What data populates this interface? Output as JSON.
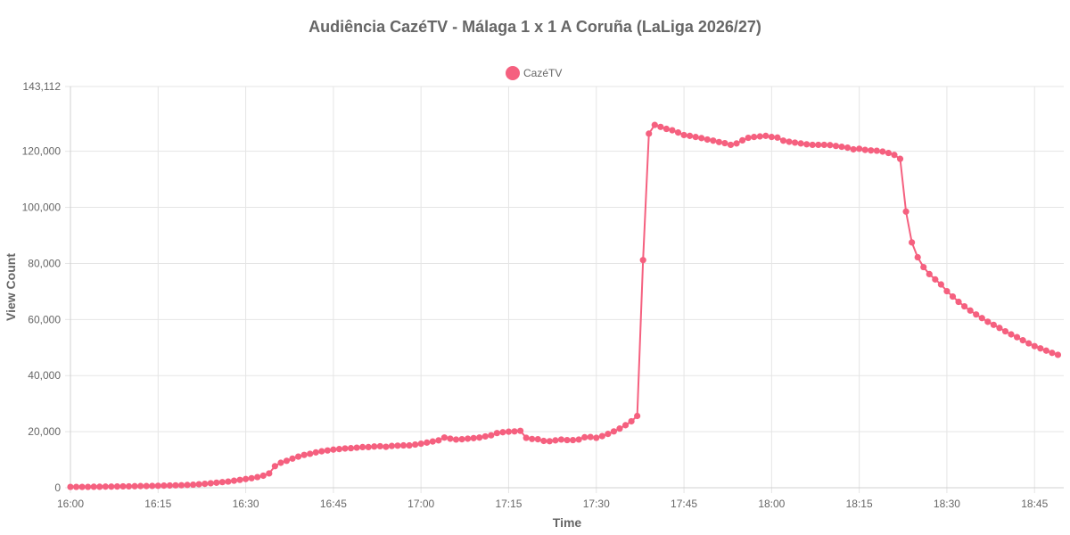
{
  "chart_data": {
    "type": "line",
    "title": "Audiência CazéTV - Málaga 1 x 1 A Coruña (LaLiga 2026/27)",
    "xlabel": "Time",
    "ylabel": "View Count",
    "x_start": "16:00",
    "x_end": "18:50",
    "xlim_minutes": [
      0,
      170
    ],
    "ylim": [
      0,
      143112
    ],
    "x_ticks": [
      "16:00",
      "16:15",
      "16:30",
      "16:45",
      "17:00",
      "17:15",
      "17:30",
      "17:45",
      "18:00",
      "18:15",
      "18:30",
      "18:45"
    ],
    "y_ticks": [
      "0",
      "20,000",
      "40,000",
      "60,000",
      "80,000",
      "100,000",
      "120,000",
      "143,112"
    ],
    "y_tick_values": [
      0,
      20000,
      40000,
      60000,
      80000,
      100000,
      120000,
      143112
    ],
    "grid": true,
    "legend_position": "top",
    "series": [
      {
        "name": "CazéTV",
        "color": "#f5607f",
        "points": [
          [
            "16:00",
            300
          ],
          [
            "16:01",
            300
          ],
          [
            "16:02",
            300
          ],
          [
            "16:03",
            300
          ],
          [
            "16:04",
            350
          ],
          [
            "16:05",
            350
          ],
          [
            "16:06",
            400
          ],
          [
            "16:07",
            400
          ],
          [
            "16:08",
            450
          ],
          [
            "16:09",
            500
          ],
          [
            "16:10",
            500
          ],
          [
            "16:11",
            550
          ],
          [
            "16:12",
            600
          ],
          [
            "16:13",
            600
          ],
          [
            "16:14",
            650
          ],
          [
            "16:15",
            700
          ],
          [
            "16:16",
            750
          ],
          [
            "16:17",
            800
          ],
          [
            "16:18",
            850
          ],
          [
            "16:19",
            900
          ],
          [
            "16:20",
            1000
          ],
          [
            "16:21",
            1100
          ],
          [
            "16:22",
            1250
          ],
          [
            "16:23",
            1400
          ],
          [
            "16:24",
            1600
          ],
          [
            "16:25",
            1800
          ],
          [
            "16:26",
            2000
          ],
          [
            "16:27",
            2200
          ],
          [
            "16:28",
            2500
          ],
          [
            "16:29",
            2800
          ],
          [
            "16:30",
            3100
          ],
          [
            "16:31",
            3400
          ],
          [
            "16:32",
            3800
          ],
          [
            "16:33",
            4300
          ],
          [
            "16:34",
            5100
          ],
          [
            "16:35",
            7700
          ],
          [
            "16:36",
            8900
          ],
          [
            "16:37",
            9600
          ],
          [
            "16:38",
            10400
          ],
          [
            "16:39",
            11100
          ],
          [
            "16:40",
            11700
          ],
          [
            "16:41",
            12100
          ],
          [
            "16:42",
            12600
          ],
          [
            "16:43",
            13000
          ],
          [
            "16:44",
            13300
          ],
          [
            "16:45",
            13600
          ],
          [
            "16:46",
            13800
          ],
          [
            "16:47",
            14000
          ],
          [
            "16:48",
            14100
          ],
          [
            "16:49",
            14300
          ],
          [
            "16:50",
            14500
          ],
          [
            "16:51",
            14500
          ],
          [
            "16:52",
            14700
          ],
          [
            "16:53",
            14800
          ],
          [
            "16:54",
            14600
          ],
          [
            "16:55",
            14900
          ],
          [
            "16:56",
            15000
          ],
          [
            "16:57",
            15100
          ],
          [
            "16:58",
            15100
          ],
          [
            "16:59",
            15400
          ],
          [
            "17:00",
            15700
          ],
          [
            "17:01",
            16100
          ],
          [
            "17:02",
            16500
          ],
          [
            "17:03",
            16900
          ],
          [
            "17:04",
            17900
          ],
          [
            "17:05",
            17500
          ],
          [
            "17:06",
            17200
          ],
          [
            "17:07",
            17300
          ],
          [
            "17:08",
            17500
          ],
          [
            "17:09",
            17700
          ],
          [
            "17:10",
            17900
          ],
          [
            "17:11",
            18300
          ],
          [
            "17:12",
            18700
          ],
          [
            "17:13",
            19500
          ],
          [
            "17:14",
            19800
          ],
          [
            "17:15",
            20000
          ],
          [
            "17:16",
            20100
          ],
          [
            "17:17",
            20300
          ],
          [
            "17:18",
            17800
          ],
          [
            "17:19",
            17400
          ],
          [
            "17:20",
            17300
          ],
          [
            "17:21",
            16700
          ],
          [
            "17:22",
            16600
          ],
          [
            "17:23",
            16900
          ],
          [
            "17:24",
            17200
          ],
          [
            "17:25",
            17000
          ],
          [
            "17:26",
            17000
          ],
          [
            "17:27",
            17200
          ],
          [
            "17:28",
            18000
          ],
          [
            "17:29",
            18100
          ],
          [
            "17:30",
            17800
          ],
          [
            "17:31",
            18400
          ],
          [
            "17:32",
            19200
          ],
          [
            "17:33",
            20100
          ],
          [
            "17:34",
            21100
          ],
          [
            "17:35",
            22300
          ],
          [
            "17:36",
            23700
          ],
          [
            "17:37",
            25600
          ],
          [
            "17:38",
            81200
          ],
          [
            "17:39",
            126300
          ],
          [
            "17:40",
            129400
          ],
          [
            "17:41",
            128700
          ],
          [
            "17:42",
            128000
          ],
          [
            "17:43",
            127500
          ],
          [
            "17:44",
            126700
          ],
          [
            "17:45",
            125800
          ],
          [
            "17:46",
            125500
          ],
          [
            "17:47",
            125100
          ],
          [
            "17:48",
            124700
          ],
          [
            "17:49",
            124200
          ],
          [
            "17:50",
            123800
          ],
          [
            "17:51",
            123300
          ],
          [
            "17:52",
            122900
          ],
          [
            "17:53",
            122300
          ],
          [
            "17:54",
            122800
          ],
          [
            "17:55",
            123900
          ],
          [
            "17:56",
            124800
          ],
          [
            "17:57",
            125100
          ],
          [
            "17:58",
            125300
          ],
          [
            "17:59",
            125500
          ],
          [
            "18:00",
            125100
          ],
          [
            "18:01",
            124900
          ],
          [
            "18:02",
            123800
          ],
          [
            "18:03",
            123400
          ],
          [
            "18:04",
            123100
          ],
          [
            "18:05",
            122800
          ],
          [
            "18:06",
            122500
          ],
          [
            "18:07",
            122300
          ],
          [
            "18:08",
            122300
          ],
          [
            "18:09",
            122300
          ],
          [
            "18:10",
            122200
          ],
          [
            "18:11",
            121900
          ],
          [
            "18:12",
            121600
          ],
          [
            "18:13",
            121300
          ],
          [
            "18:14",
            120700
          ],
          [
            "18:15",
            120900
          ],
          [
            "18:16",
            120500
          ],
          [
            "18:17",
            120300
          ],
          [
            "18:18",
            120200
          ],
          [
            "18:19",
            119900
          ],
          [
            "18:20",
            119400
          ],
          [
            "18:21",
            118700
          ],
          [
            "18:22",
            117300
          ],
          [
            "18:23",
            98500
          ],
          [
            "18:24",
            87500
          ],
          [
            "18:25",
            82200
          ],
          [
            "18:26",
            78700
          ],
          [
            "18:27",
            76200
          ],
          [
            "18:28",
            74300
          ],
          [
            "18:29",
            72500
          ],
          [
            "18:30",
            70100
          ],
          [
            "18:31",
            68200
          ],
          [
            "18:32",
            66300
          ],
          [
            "18:33",
            64700
          ],
          [
            "18:34",
            63200
          ],
          [
            "18:35",
            61800
          ],
          [
            "18:36",
            60500
          ],
          [
            "18:37",
            59200
          ],
          [
            "18:38",
            58100
          ],
          [
            "18:39",
            57000
          ],
          [
            "18:40",
            55800
          ],
          [
            "18:41",
            54700
          ],
          [
            "18:42",
            53700
          ],
          [
            "18:43",
            52600
          ],
          [
            "18:44",
            51500
          ],
          [
            "18:45",
            50500
          ],
          [
            "18:46",
            49700
          ],
          [
            "18:47",
            48900
          ],
          [
            "18:48",
            48100
          ],
          [
            "18:49",
            47400
          ]
        ]
      }
    ]
  }
}
